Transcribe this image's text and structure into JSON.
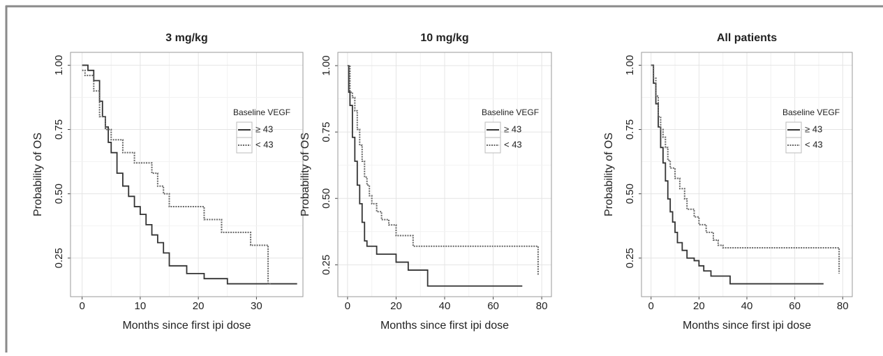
{
  "chart_data": [
    {
      "type": "line",
      "title": "3 mg/kg",
      "x_label": "Months since first ipi dose",
      "y_label": "Probability of OS",
      "legend_title": "Baseline VEGF",
      "grid": true,
      "xlim": [
        -2,
        38
      ],
      "xticks": [
        0,
        10,
        20,
        30
      ],
      "ylim": [
        0.1,
        1.05
      ],
      "yticks": [
        0.25,
        {
          "value": 0.5,
          "label": "0.50"
        },
        0.75,
        {
          "value": 1,
          "label": "1.00"
        }
      ],
      "series": [
        {
          "name": "≥ 43",
          "color": "#333333",
          "style": "solid",
          "x": [
            0,
            1,
            2,
            3,
            3.5,
            4,
            4.5,
            5,
            6,
            7,
            8,
            9,
            10,
            11,
            12,
            13,
            14,
            15,
            18,
            21,
            25,
            37
          ],
          "values": [
            1.0,
            0.98,
            0.94,
            0.86,
            0.8,
            0.76,
            0.7,
            0.66,
            0.58,
            0.53,
            0.49,
            0.45,
            0.42,
            0.38,
            0.34,
            0.31,
            0.27,
            0.22,
            0.19,
            0.17,
            0.15,
            0.15
          ]
        },
        {
          "name": "< 43",
          "color": "#666666",
          "style": "dotted",
          "x": [
            0,
            0.5,
            1,
            2,
            3,
            4,
            5,
            7,
            9,
            12,
            13,
            14,
            15,
            21,
            22,
            24,
            29,
            32,
            32.5
          ],
          "values": [
            0.98,
            0.96,
            0.96,
            0.9,
            0.8,
            0.75,
            0.71,
            0.66,
            0.62,
            0.58,
            0.53,
            0.5,
            0.45,
            0.4,
            0.4,
            0.35,
            0.3,
            0.15,
            0.15
          ]
        }
      ]
    },
    {
      "type": "line",
      "title": "10 mg/kg",
      "x_label": "Months since first ipi dose",
      "y_label": "Probability of OS",
      "legend_title": "Baseline VEGF",
      "grid": true,
      "xlim": [
        -4,
        84
      ],
      "xticks": [
        0,
        20,
        40,
        60,
        80
      ],
      "ylim": [
        0.13,
        1.05
      ],
      "yticks": [
        0.25,
        {
          "value": 0.5,
          "label": "0.50"
        },
        0.75,
        {
          "value": 1,
          "label": "1.00"
        }
      ],
      "series": [
        {
          "name": "≥ 43",
          "color": "#333333",
          "style": "solid",
          "x": [
            0,
            0.5,
            1,
            2,
            3,
            4,
            5,
            6,
            7,
            8,
            12,
            20,
            25,
            33,
            72
          ],
          "values": [
            1.0,
            0.9,
            0.85,
            0.73,
            0.64,
            0.55,
            0.48,
            0.41,
            0.34,
            0.32,
            0.29,
            0.26,
            0.23,
            0.17,
            0.17
          ]
        },
        {
          "name": "< 43",
          "color": "#666666",
          "style": "dotted",
          "x": [
            0,
            1,
            2,
            3,
            4,
            5,
            6,
            7,
            8,
            9,
            10,
            12,
            14,
            17,
            20,
            27,
            78,
            78.5
          ],
          "values": [
            1.0,
            0.9,
            0.88,
            0.83,
            0.76,
            0.7,
            0.64,
            0.58,
            0.55,
            0.51,
            0.48,
            0.45,
            0.42,
            0.4,
            0.36,
            0.32,
            0.32,
            0.21
          ]
        }
      ]
    },
    {
      "type": "line",
      "title": "All patients",
      "x_label": "Months since first ipi dose",
      "y_label": "Probability of OS",
      "legend_title": "Baseline VEGF",
      "grid": true,
      "xlim": [
        -4,
        84
      ],
      "xticks": [
        0,
        20,
        40,
        60,
        80
      ],
      "ylim": [
        0.1,
        1.05
      ],
      "yticks": [
        0.25,
        {
          "value": 0.5,
          "label": "0.50"
        },
        0.75,
        {
          "value": 1,
          "label": "1.00"
        }
      ],
      "series": [
        {
          "name": "≥ 43",
          "color": "#333333",
          "style": "solid",
          "x": [
            0,
            1,
            2,
            3,
            4,
            5,
            6,
            7,
            8,
            9,
            10,
            11,
            13,
            15,
            18,
            20,
            22,
            25,
            27,
            33,
            72
          ],
          "values": [
            1.0,
            0.93,
            0.85,
            0.76,
            0.68,
            0.62,
            0.55,
            0.48,
            0.43,
            0.39,
            0.35,
            0.31,
            0.28,
            0.25,
            0.24,
            0.22,
            0.2,
            0.18,
            0.18,
            0.15,
            0.15
          ]
        },
        {
          "name": "< 43",
          "color": "#666666",
          "style": "dotted",
          "x": [
            0,
            1,
            2,
            3,
            4,
            5,
            6,
            7,
            8,
            10,
            12,
            14,
            15,
            18,
            20,
            23,
            26,
            28,
            30,
            78,
            78.5
          ],
          "values": [
            1.0,
            0.95,
            0.88,
            0.8,
            0.75,
            0.72,
            0.68,
            0.63,
            0.6,
            0.56,
            0.52,
            0.48,
            0.44,
            0.41,
            0.38,
            0.35,
            0.32,
            0.3,
            0.29,
            0.29,
            0.19
          ]
        }
      ]
    }
  ]
}
